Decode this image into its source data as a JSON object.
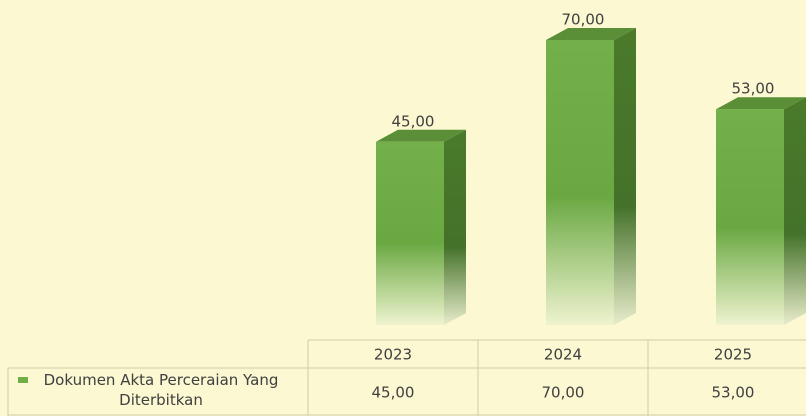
{
  "chart_data": {
    "type": "bar",
    "categories": [
      "2023",
      "2024",
      "2025"
    ],
    "series": [
      {
        "name": "Dokumen Akta Perceraian Yang Diterbitkan",
        "color": "#70ad47",
        "values": [
          45,
          70,
          53
        ],
        "value_labels": [
          "45,00",
          "70,00",
          "53,00"
        ]
      }
    ]
  }
}
